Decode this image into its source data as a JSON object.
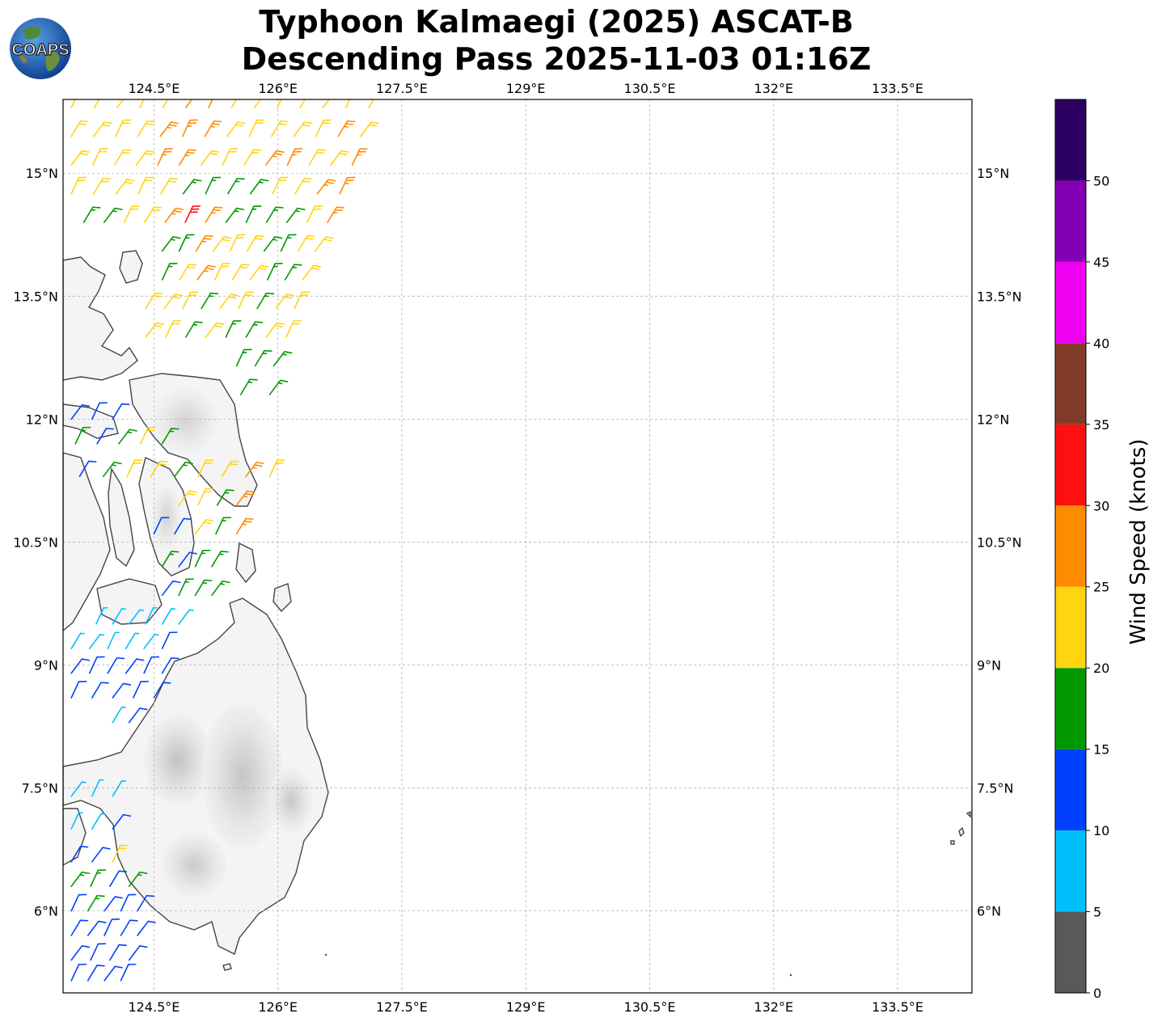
{
  "title": {
    "line1": "Typhoon Kalmaegi (2025) ASCAT-B",
    "line2": "Descending Pass 2025-11-03 01:16Z"
  },
  "logo": {
    "text": "COAPS",
    "icon": "globe-icon"
  },
  "map": {
    "lon_ticks": [
      "124.5°E",
      "126°E",
      "127.5°E",
      "129°E",
      "130.5°E",
      "132°E",
      "133.5°E"
    ],
    "lat_ticks": [
      "15°N",
      "13.5°N",
      "12°N",
      "10.5°N",
      "9°N",
      "7.5°N",
      "6°N"
    ],
    "lon_values": [
      124.5,
      126,
      127.5,
      129,
      130.5,
      132,
      133.5
    ],
    "lat_values": [
      15,
      13.5,
      12,
      10.5,
      9,
      7.5,
      6
    ],
    "lon_range": [
      123.4,
      134.4
    ],
    "lat_range": [
      5.0,
      15.9
    ],
    "grid": true
  },
  "colorbar": {
    "label": "Wind Speed (knots)",
    "ticks": [
      "0",
      "5",
      "10",
      "15",
      "20",
      "25",
      "30",
      "35",
      "40",
      "45",
      "50"
    ],
    "bins": [
      {
        "from": 0,
        "to": 5,
        "color": "#595959"
      },
      {
        "from": 5,
        "to": 10,
        "color": "#00bfff"
      },
      {
        "from": 10,
        "to": 15,
        "color": "#0040ff"
      },
      {
        "from": 15,
        "to": 20,
        "color": "#009900"
      },
      {
        "from": 20,
        "to": 25,
        "color": "#ffd510"
      },
      {
        "from": 25,
        "to": 30,
        "color": "#ff8c00"
      },
      {
        "from": 30,
        "to": 35,
        "color": "#ff1010"
      },
      {
        "from": 35,
        "to": 40,
        "color": "#803c28"
      },
      {
        "from": 40,
        "to": 45,
        "color": "#f000f0"
      },
      {
        "from": 45,
        "to": 50,
        "color": "#8400b4"
      },
      {
        "from": 50,
        "to": 55,
        "color": "#2c0060"
      }
    ]
  },
  "wind_swath": [
    {
      "lat": 15.8,
      "lon_start": 123.5,
      "lon_end": 127.1,
      "speeds": [
        22,
        22,
        23,
        22,
        24,
        26,
        27,
        23,
        22,
        22,
        23,
        22,
        22,
        23
      ]
    },
    {
      "lat": 15.45,
      "lon_start": 123.5,
      "lon_end": 127.0,
      "speeds": [
        22,
        23,
        22,
        23,
        27,
        28,
        26,
        23,
        22,
        23,
        22,
        22,
        26,
        24
      ]
    },
    {
      "lat": 15.1,
      "lon_start": 123.5,
      "lon_end": 126.9,
      "speeds": [
        22,
        22,
        23,
        23,
        28,
        27,
        24,
        23,
        22,
        27,
        28,
        23,
        22,
        27
      ]
    },
    {
      "lat": 14.75,
      "lon_start": 123.5,
      "lon_end": 126.75,
      "speeds": [
        23,
        22,
        22,
        22,
        23,
        18,
        17,
        19,
        18,
        23,
        24,
        28,
        26
      ]
    },
    {
      "lat": 14.4,
      "lon_start": 123.65,
      "lon_end": 126.6,
      "speeds": [
        17,
        18,
        22,
        23,
        29,
        32,
        27,
        18,
        17,
        19,
        18,
        23,
        28
      ]
    },
    {
      "lat": 14.05,
      "lon_start": 124.6,
      "lon_end": 126.45,
      "speeds": [
        17,
        18,
        27,
        24,
        22,
        23,
        18,
        17,
        22,
        23
      ]
    },
    {
      "lat": 13.7,
      "lon_start": 124.6,
      "lon_end": 126.3,
      "speeds": [
        18,
        23,
        27,
        22,
        23,
        22,
        18,
        19,
        23
      ]
    },
    {
      "lat": 13.35,
      "lon_start": 124.4,
      "lon_end": 126.2,
      "speeds": [
        22,
        23,
        22,
        18,
        23,
        22,
        18,
        22,
        23
      ]
    },
    {
      "lat": 13.0,
      "lon_start": 124.4,
      "lon_end": 126.1,
      "speeds": [
        23,
        22,
        18,
        22,
        17,
        18,
        22,
        23
      ]
    },
    {
      "lat": 12.65,
      "lon_start": 125.5,
      "lon_end": 125.95,
      "speeds": [
        18,
        17,
        18
      ]
    },
    {
      "lat": 12.3,
      "lon_start": 125.55,
      "lon_end": 125.9,
      "speeds": [
        17,
        18
      ]
    },
    {
      "lat": 12.0,
      "lon_start": 123.5,
      "lon_end": 124.0,
      "speeds": [
        12,
        12,
        13
      ]
    },
    {
      "lat": 11.7,
      "lon_start": 123.55,
      "lon_end": 124.6,
      "speeds": [
        17,
        12,
        17,
        22,
        18
      ]
    },
    {
      "lat": 11.3,
      "lon_start": 123.6,
      "lon_end": 125.9,
      "speeds": [
        12,
        17,
        22,
        23,
        18,
        22,
        23,
        27,
        22
      ]
    },
    {
      "lat": 10.95,
      "lon_start": 124.8,
      "lon_end": 125.5,
      "speeds": [
        22,
        23,
        18,
        27
      ]
    },
    {
      "lat": 10.6,
      "lon_start": 124.5,
      "lon_end": 125.5,
      "speeds": [
        12,
        11,
        22,
        18,
        27
      ]
    },
    {
      "lat": 10.2,
      "lon_start": 124.6,
      "lon_end": 125.2,
      "speeds": [
        17,
        12,
        18,
        17
      ]
    },
    {
      "lat": 9.85,
      "lon_start": 124.6,
      "lon_end": 125.2,
      "speeds": [
        12,
        17,
        18,
        17
      ]
    },
    {
      "lat": 9.5,
      "lon_start": 123.8,
      "lon_end": 124.8,
      "speeds": [
        7,
        8,
        7,
        6,
        8,
        7
      ]
    },
    {
      "lat": 9.2,
      "lon_start": 123.5,
      "lon_end": 124.6,
      "speeds": [
        7,
        6,
        7,
        8,
        7,
        12
      ]
    },
    {
      "lat": 8.9,
      "lon_start": 123.5,
      "lon_end": 124.6,
      "speeds": [
        12,
        11,
        12,
        12,
        11,
        13
      ]
    },
    {
      "lat": 8.6,
      "lon_start": 123.5,
      "lon_end": 124.5,
      "speeds": [
        12,
        13,
        11,
        12,
        12
      ]
    },
    {
      "lat": 8.3,
      "lon_start": 124.0,
      "lon_end": 124.2,
      "speeds": [
        7,
        12
      ]
    },
    {
      "lat": 7.4,
      "lon_start": 123.5,
      "lon_end": 124.0,
      "speeds": [
        7,
        8,
        7
      ]
    },
    {
      "lat": 7.0,
      "lon_start": 123.5,
      "lon_end": 124.0,
      "speeds": [
        8,
        7,
        12
      ]
    },
    {
      "lat": 6.6,
      "lon_start": 123.5,
      "lon_end": 124.0,
      "speeds": [
        12,
        12,
        22
      ]
    },
    {
      "lat": 6.3,
      "lon_start": 123.5,
      "lon_end": 124.2,
      "speeds": [
        17,
        17,
        12,
        17
      ]
    },
    {
      "lat": 6.0,
      "lon_start": 123.5,
      "lon_end": 124.3,
      "speeds": [
        12,
        17,
        12,
        12,
        12
      ]
    },
    {
      "lat": 5.7,
      "lon_start": 123.5,
      "lon_end": 124.3,
      "speeds": [
        12,
        12,
        12,
        13,
        12
      ]
    },
    {
      "lat": 5.4,
      "lon_start": 123.5,
      "lon_end": 124.2,
      "speeds": [
        12,
        12,
        13,
        12
      ]
    },
    {
      "lat": 5.15,
      "lon_start": 123.5,
      "lon_end": 124.1,
      "speeds": [
        12,
        12,
        12,
        12
      ]
    }
  ]
}
